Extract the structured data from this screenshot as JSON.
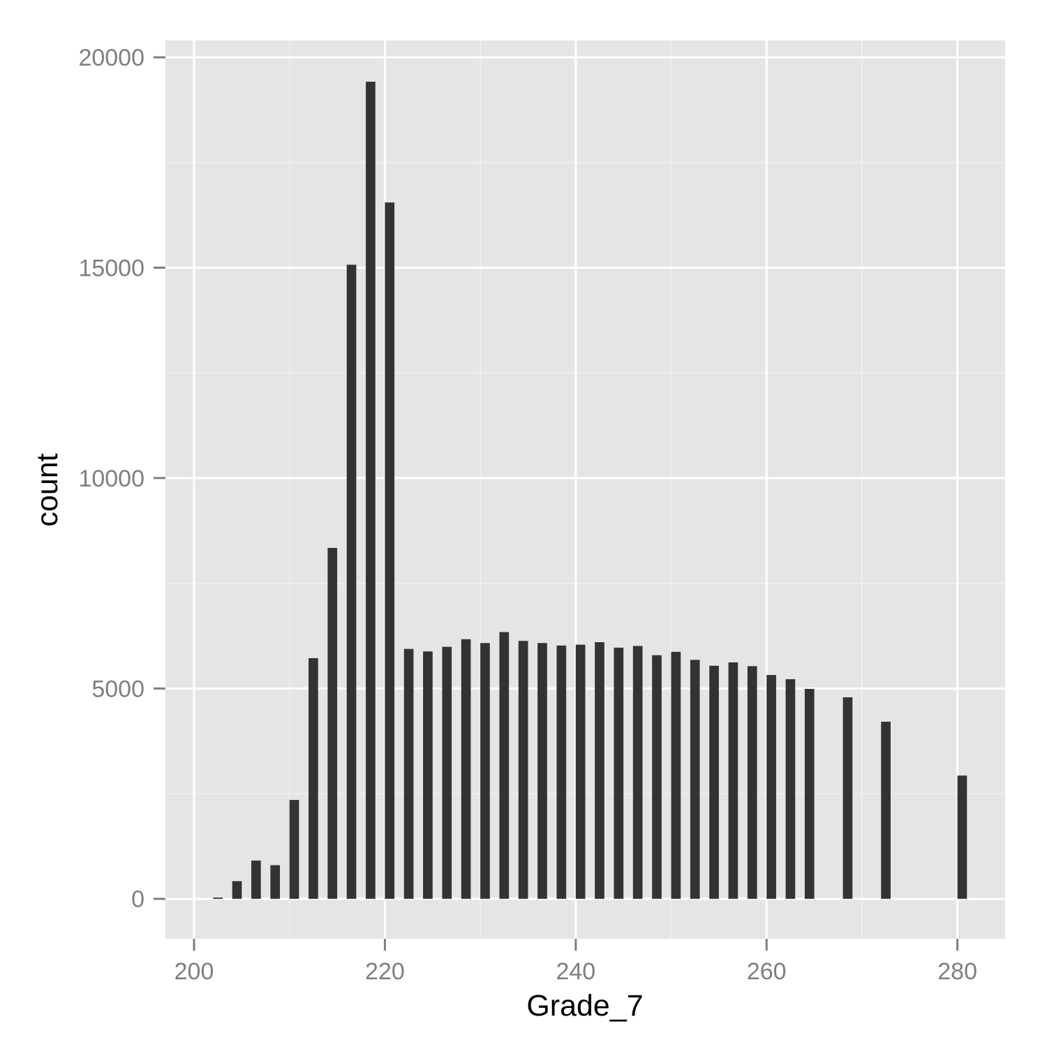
{
  "chart_data": {
    "type": "bar",
    "xlabel": "Grade_7",
    "ylabel": "count",
    "xlim": [
      197,
      285
    ],
    "ylim": [
      -950,
      20400
    ],
    "x_ticks": [
      200,
      220,
      240,
      260,
      280
    ],
    "y_ticks": [
      0,
      5000,
      10000,
      15000,
      20000
    ],
    "x_minor": [
      210,
      230,
      250,
      270
    ],
    "y_minor": [
      2500,
      7500,
      12500,
      17500
    ],
    "grid": true,
    "bar_width": 1.0,
    "x": [
      202.5,
      204.5,
      206.5,
      208.5,
      210.5,
      212.5,
      214.5,
      216.5,
      218.5,
      220.5,
      222.5,
      224.5,
      226.5,
      228.5,
      230.5,
      232.5,
      234.5,
      236.5,
      238.5,
      240.5,
      242.5,
      244.5,
      246.5,
      248.5,
      250.5,
      252.5,
      254.5,
      256.5,
      258.5,
      260.5,
      262.5,
      264.5,
      268.5,
      272.5,
      280.5
    ],
    "values": [
      30,
      420,
      910,
      800,
      2350,
      5720,
      8340,
      15070,
      19420,
      16550,
      5940,
      5880,
      5990,
      6170,
      6080,
      6340,
      6130,
      6080,
      6020,
      6040,
      6100,
      5970,
      6010,
      5790,
      5870,
      5680,
      5540,
      5620,
      5530,
      5320,
      5220,
      4990,
      4790,
      4210,
      2930
    ],
    "colors": {
      "bar": "#333333",
      "panel": "#e5e5e5",
      "grid_major": "#ffffff",
      "grid_minor": "#f2f2f2",
      "tick_text": "#7f7f7f",
      "tick_mark": "#7f7f7f"
    }
  }
}
